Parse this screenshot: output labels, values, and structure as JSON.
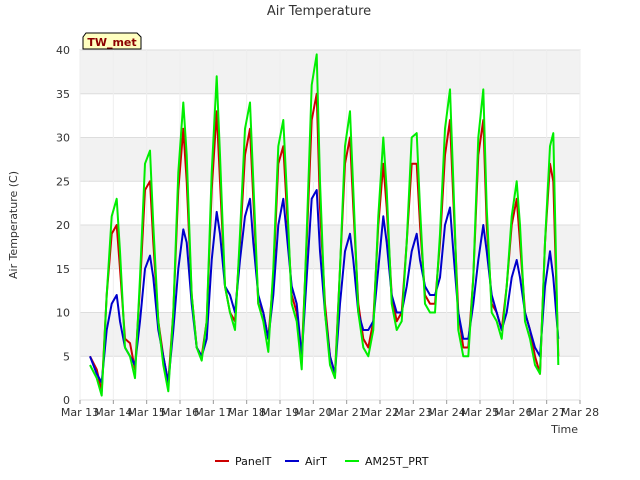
{
  "chart_data": {
    "type": "line",
    "title": "Air Temperature",
    "xlabel": "Time",
    "ylabel": "Air Temperature (C)",
    "station_badge": "TW_met",
    "ylim": [
      0,
      40
    ],
    "yticks": [
      0,
      5,
      10,
      15,
      20,
      25,
      30,
      35,
      40
    ],
    "xlim": [
      13,
      28
    ],
    "xticks": [
      {
        "v": 13,
        "label": "Mar 13"
      },
      {
        "v": 14,
        "label": "Mar 14"
      },
      {
        "v": 15,
        "label": "Mar 15"
      },
      {
        "v": 16,
        "label": "Mar 16"
      },
      {
        "v": 17,
        "label": "Mar 17"
      },
      {
        "v": 18,
        "label": "Mar 18"
      },
      {
        "v": 19,
        "label": "Mar 19"
      },
      {
        "v": 20,
        "label": "Mar 20"
      },
      {
        "v": 21,
        "label": "Mar 21"
      },
      {
        "v": 22,
        "label": "Mar 22"
      },
      {
        "v": 23,
        "label": "Mar 23"
      },
      {
        "v": 24,
        "label": "Mar 24"
      },
      {
        "v": 25,
        "label": "Mar 25"
      },
      {
        "v": 26,
        "label": "Mar 26"
      },
      {
        "v": 27,
        "label": "Mar 27"
      },
      {
        "v": 28,
        "label": "Mar 28"
      }
    ],
    "grid": true,
    "legend_position": "bottom",
    "series": [
      {
        "name": "PanelT",
        "color": "#cc0000",
        "x": [
          13.3,
          13.5,
          13.65,
          13.8,
          13.95,
          14.1,
          14.2,
          14.35,
          14.5,
          14.65,
          14.8,
          14.95,
          15.1,
          15.2,
          15.35,
          15.5,
          15.65,
          15.8,
          15.95,
          16.1,
          16.2,
          16.35,
          16.5,
          16.65,
          16.8,
          16.95,
          17.1,
          17.2,
          17.35,
          17.5,
          17.65,
          17.8,
          17.95,
          18.1,
          18.2,
          18.35,
          18.5,
          18.65,
          18.8,
          18.95,
          19.1,
          19.2,
          19.35,
          19.5,
          19.65,
          19.8,
          19.95,
          20.1,
          20.2,
          20.35,
          20.5,
          20.65,
          20.8,
          20.95,
          21.1,
          21.2,
          21.35,
          21.5,
          21.65,
          21.8,
          21.95,
          22.1,
          22.2,
          22.35,
          22.5,
          22.65,
          22.8,
          22.95,
          23.1,
          23.2,
          23.35,
          23.5,
          23.65,
          23.8,
          23.95,
          24.1,
          24.2,
          24.35,
          24.5,
          24.65,
          24.8,
          24.95,
          25.1,
          25.2,
          25.35,
          25.5,
          25.65,
          25.8,
          25.95,
          26.1,
          26.2,
          26.35,
          26.5,
          26.65,
          26.8,
          26.95,
          27.1,
          27.2,
          27.35
        ],
        "y": [
          5,
          3.5,
          1,
          12,
          19,
          20,
          15,
          7,
          6.5,
          3.5,
          13,
          24,
          25,
          18,
          9,
          5,
          2,
          10,
          24,
          31,
          25,
          12,
          6,
          5,
          9,
          24,
          33,
          25,
          13,
          10,
          9,
          18,
          28,
          31,
          23,
          11,
          10,
          7,
          14,
          27,
          29,
          22,
          12,
          10,
          5,
          18,
          32,
          35,
          22,
          11,
          5,
          3,
          15,
          27,
          30,
          22,
          11,
          7,
          6,
          9,
          20,
          27,
          22,
          12,
          9,
          10,
          18,
          27,
          27,
          20,
          12,
          11,
          11,
          18,
          28,
          32,
          23,
          10,
          6,
          6,
          14,
          28,
          32,
          20,
          11,
          10,
          8,
          13,
          20,
          23,
          18,
          10,
          8,
          5,
          3,
          18,
          27,
          25,
          5
        ]
      },
      {
        "name": "AirT",
        "color": "#0000cc",
        "x": [
          13.3,
          13.5,
          13.65,
          13.8,
          13.95,
          14.1,
          14.2,
          14.35,
          14.5,
          14.65,
          14.8,
          14.95,
          15.1,
          15.2,
          15.35,
          15.5,
          15.65,
          15.8,
          15.95,
          16.1,
          16.2,
          16.35,
          16.5,
          16.65,
          16.8,
          16.95,
          17.1,
          17.2,
          17.35,
          17.5,
          17.65,
          17.8,
          17.95,
          18.1,
          18.2,
          18.35,
          18.5,
          18.65,
          18.8,
          18.95,
          19.1,
          19.2,
          19.35,
          19.5,
          19.65,
          19.8,
          19.95,
          20.1,
          20.2,
          20.35,
          20.5,
          20.65,
          20.8,
          20.95,
          21.1,
          21.2,
          21.35,
          21.5,
          21.65,
          21.8,
          21.95,
          22.1,
          22.2,
          22.35,
          22.5,
          22.65,
          22.8,
          22.95,
          23.1,
          23.2,
          23.35,
          23.5,
          23.65,
          23.8,
          23.95,
          24.1,
          24.2,
          24.35,
          24.5,
          24.65,
          24.8,
          24.95,
          25.1,
          25.2,
          25.35,
          25.5,
          25.65,
          25.8,
          25.95,
          26.1,
          26.2,
          26.35,
          26.5,
          26.65,
          26.8,
          26.95,
          27.1,
          27.2,
          27.35
        ],
        "y": [
          5,
          3,
          2,
          8,
          11,
          12,
          9,
          6,
          5,
          4,
          9,
          15,
          16.5,
          14,
          8,
          5,
          2,
          8,
          15,
          19.5,
          18,
          11,
          6,
          5,
          7,
          16,
          21.5,
          19,
          13,
          12,
          10,
          16,
          21,
          23,
          18,
          12,
          10,
          7,
          12,
          20,
          23,
          19,
          13,
          11,
          5,
          14,
          23,
          24,
          17,
          10,
          5,
          3,
          11,
          17,
          19,
          16,
          10,
          8,
          8,
          9,
          15,
          21,
          18,
          12,
          10,
          10,
          13,
          17,
          19,
          16,
          13,
          12,
          12,
          14,
          20,
          22,
          17,
          10,
          7,
          7,
          11,
          16,
          20,
          17,
          12,
          10,
          8,
          10,
          14,
          16,
          14,
          10,
          8,
          6,
          5,
          13,
          17,
          14,
          7
        ]
      },
      {
        "name": "AM25T_PRT",
        "color": "#00ee00",
        "x": [
          13.3,
          13.5,
          13.65,
          13.8,
          13.95,
          14.1,
          14.2,
          14.35,
          14.5,
          14.65,
          14.8,
          14.95,
          15.1,
          15.2,
          15.35,
          15.5,
          15.65,
          15.8,
          15.95,
          16.1,
          16.2,
          16.35,
          16.5,
          16.65,
          16.8,
          16.95,
          17.1,
          17.2,
          17.35,
          17.5,
          17.65,
          17.8,
          17.95,
          18.1,
          18.2,
          18.35,
          18.5,
          18.65,
          18.8,
          18.95,
          19.1,
          19.2,
          19.35,
          19.5,
          19.65,
          19.8,
          19.95,
          20.1,
          20.2,
          20.35,
          20.5,
          20.65,
          20.8,
          20.95,
          21.1,
          21.2,
          21.35,
          21.5,
          21.65,
          21.8,
          21.95,
          22.1,
          22.2,
          22.35,
          22.5,
          22.65,
          22.8,
          22.95,
          23.1,
          23.2,
          23.35,
          23.5,
          23.65,
          23.8,
          23.95,
          24.1,
          24.2,
          24.35,
          24.5,
          24.65,
          24.8,
          24.95,
          25.1,
          25.2,
          25.35,
          25.5,
          25.65,
          25.8,
          25.95,
          26.1,
          26.2,
          26.35,
          26.5,
          26.65,
          26.8,
          26.95,
          27.1,
          27.2,
          27.35
        ],
        "y": [
          4,
          2.5,
          0.5,
          12,
          21,
          23,
          17,
          6,
          5,
          2.5,
          14,
          27,
          28.5,
          20,
          9,
          4,
          1,
          10,
          26,
          34,
          28,
          12,
          6,
          4.5,
          9,
          26,
          37,
          28,
          13,
          10,
          8,
          19,
          31,
          34,
          25,
          11,
          9,
          5.5,
          15,
          29,
          32,
          24,
          11,
          9,
          3.5,
          19,
          36,
          39.5,
          25,
          10,
          4,
          2.5,
          15,
          29,
          33,
          24,
          10,
          6,
          5,
          8,
          21,
          30,
          24,
          11,
          8,
          9,
          18,
          30,
          30.5,
          22,
          11,
          10,
          10,
          19,
          31,
          35.5,
          25,
          8,
          5,
          5,
          14,
          30,
          35.5,
          22,
          10,
          9,
          7,
          13,
          21,
          25,
          20,
          9,
          7,
          4,
          3,
          18,
          29,
          30.5,
          4
        ]
      }
    ]
  }
}
